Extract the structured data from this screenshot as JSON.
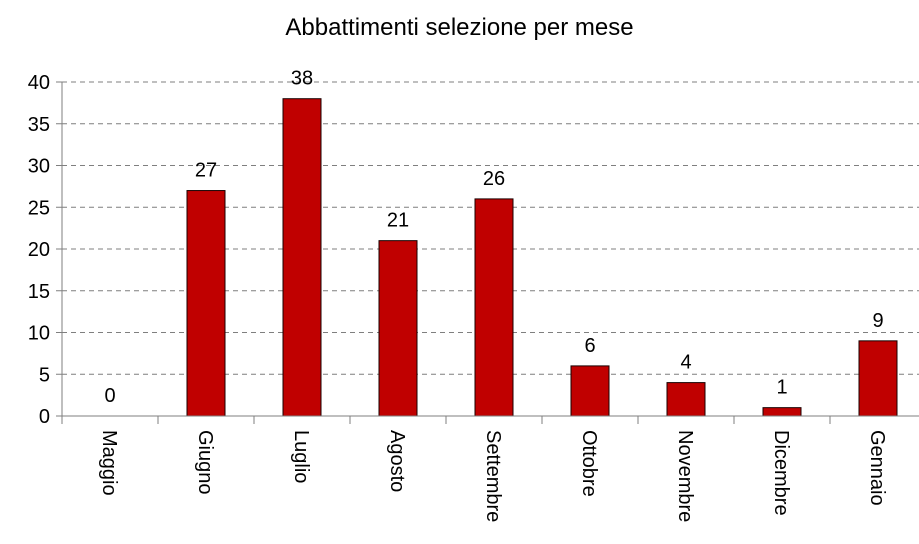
{
  "chart_data": {
    "type": "bar",
    "title": "Abbattimenti selezione per mese",
    "xlabel": "",
    "ylabel": "",
    "categories": [
      "Maggio",
      "Giugno",
      "Luglio",
      "Agosto",
      "Settembre",
      "Ottobre",
      "Novembre",
      "Dicembre",
      "Gennaio"
    ],
    "values": [
      0,
      27,
      38,
      21,
      26,
      6,
      4,
      1,
      9
    ],
    "ylim": [
      0,
      40
    ],
    "yticks": [
      "0",
      "5",
      "10",
      "15",
      "20",
      "25",
      "30",
      "35",
      "40"
    ],
    "grid": "horizontal-dashed",
    "legend": "none",
    "bar_color": "#c00000",
    "bar_border": "#1a0000"
  }
}
